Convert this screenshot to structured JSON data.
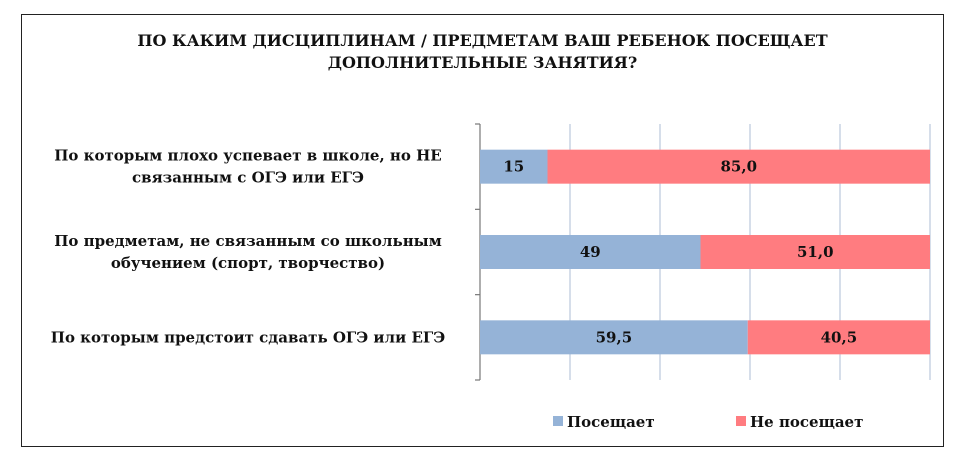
{
  "chart_data": {
    "type": "bar",
    "orientation": "horizontal",
    "stacked": true,
    "title_lines": [
      "ПО КАКИМ ДИСЦИПЛИНАМ / ПРЕДМЕТАМ ВАШ РЕБЕНОК ПОСЕЩАЕТ",
      "ДОПОЛНИТЕЛЬНЫЕ ЗАНЯТИЯ?"
    ],
    "categories": [
      [
        "По которым плохо успевает в школе, но НЕ",
        "связанным с ОГЭ или ЕГЭ"
      ],
      [
        "По предметам, не связанным со школьным",
        "обучением (спорт, творчество)"
      ],
      [
        "По которым предстоит сдавать ОГЭ или ЕГЭ"
      ]
    ],
    "series": [
      {
        "name": "Посещает",
        "color": "#95b3d7",
        "values": [
          15,
          49,
          59.5
        ],
        "labels": [
          "15",
          "49",
          "59,5"
        ]
      },
      {
        "name": "Не посещает",
        "color": "#ff7c80",
        "values": [
          85.0,
          51.0,
          40.5
        ],
        "labels": [
          "85,0",
          "51,0",
          "40,5"
        ]
      }
    ],
    "xlim": [
      0,
      100
    ],
    "gridlines": [
      0,
      20,
      40,
      60,
      80,
      100
    ],
    "grid": true,
    "legend_position": "bottom"
  }
}
